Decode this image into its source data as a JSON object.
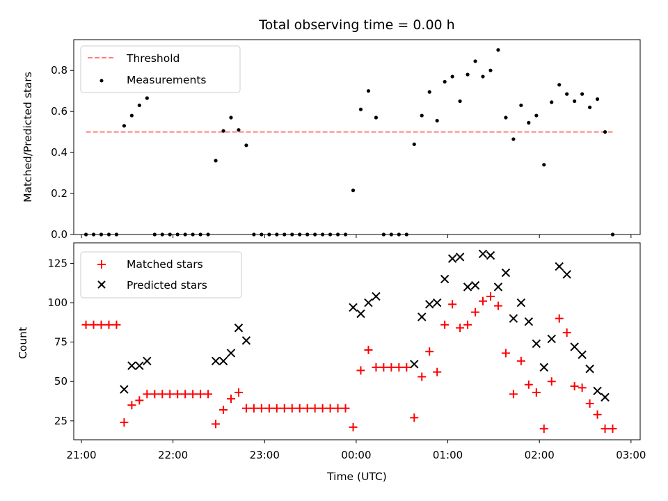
{
  "chart_data": [
    {
      "type": "scatter",
      "title": "Total observing time = 0.00 h",
      "xlabel": "",
      "ylabel": "Matched/Predicted stars",
      "xlim": [
        "20:55",
        "03:06"
      ],
      "ylim": [
        0,
        0.95
      ],
      "y_ticks": [
        0,
        0.2,
        0.4,
        0.6,
        0.8
      ],
      "y_tick_labels": [
        "0.0",
        "0.2",
        "0.4",
        "0.6",
        "0.8"
      ],
      "grid": false,
      "legend": "top-left",
      "legend_entries": [
        "Threshold",
        "Measurements"
      ],
      "threshold": {
        "name": "Threshold",
        "y": 0.5,
        "x_range": [
          "21:03",
          "02:48"
        ],
        "color": "#ff7f7f",
        "style": "dashed"
      },
      "series": [
        {
          "name": "Measurements",
          "color": "#000000",
          "marker": "dot",
          "points": [
            [
              "21:03",
              0
            ],
            [
              "21:08",
              0
            ],
            [
              "21:13",
              0
            ],
            [
              "21:18",
              0
            ],
            [
              "21:23",
              0
            ],
            [
              "21:28",
              0.53
            ],
            [
              "21:33",
              0.58
            ],
            [
              "21:38",
              0.63
            ],
            [
              "21:43",
              0.665
            ],
            [
              "21:48",
              0
            ],
            [
              "21:53",
              0
            ],
            [
              "21:58",
              0
            ],
            [
              "22:03",
              0
            ],
            [
              "22:08",
              0
            ],
            [
              "22:13",
              0
            ],
            [
              "22:18",
              0
            ],
            [
              "22:23",
              0
            ],
            [
              "22:28",
              0.36
            ],
            [
              "22:33",
              0.505
            ],
            [
              "22:38",
              0.57
            ],
            [
              "22:43",
              0.51
            ],
            [
              "22:48",
              0.435
            ],
            [
              "22:53",
              0
            ],
            [
              "22:58",
              0
            ],
            [
              "23:03",
              0
            ],
            [
              "23:08",
              0
            ],
            [
              "23:13",
              0
            ],
            [
              "23:18",
              0
            ],
            [
              "23:23",
              0
            ],
            [
              "23:28",
              0
            ],
            [
              "23:33",
              0
            ],
            [
              "23:38",
              0
            ],
            [
              "23:43",
              0
            ],
            [
              "23:48",
              0
            ],
            [
              "23:53",
              0
            ],
            [
              "23:58",
              0.215
            ],
            [
              "00:03",
              0.61
            ],
            [
              "00:08",
              0.7
            ],
            [
              "00:13",
              0.57
            ],
            [
              "00:18",
              0
            ],
            [
              "00:23",
              0
            ],
            [
              "00:28",
              0
            ],
            [
              "00:33",
              0
            ],
            [
              "00:38",
              0.44
            ],
            [
              "00:43",
              0.58
            ],
            [
              "00:48",
              0.695
            ],
            [
              "00:53",
              0.555
            ],
            [
              "00:58",
              0.745
            ],
            [
              "01:03",
              0.77
            ],
            [
              "01:08",
              0.65
            ],
            [
              "01:13",
              0.78
            ],
            [
              "01:18",
              0.845
            ],
            [
              "01:23",
              0.77
            ],
            [
              "01:28",
              0.8
            ],
            [
              "01:33",
              0.9
            ],
            [
              "01:38",
              0.57
            ],
            [
              "01:43",
              0.465
            ],
            [
              "01:48",
              0.63
            ],
            [
              "01:53",
              0.545
            ],
            [
              "01:58",
              0.58
            ],
            [
              "02:03",
              0.34
            ],
            [
              "02:08",
              0.645
            ],
            [
              "02:13",
              0.73
            ],
            [
              "02:18",
              0.685
            ],
            [
              "02:23",
              0.65
            ],
            [
              "02:28",
              0.685
            ],
            [
              "02:33",
              0.62
            ],
            [
              "02:38",
              0.66
            ],
            [
              "02:43",
              0.5
            ],
            [
              "02:48",
              0
            ]
          ]
        }
      ]
    },
    {
      "type": "scatter",
      "title": "",
      "xlabel": "Time (UTC)",
      "ylabel": "Count",
      "xlim": [
        "20:55",
        "03:06"
      ],
      "ylim": [
        13,
        138
      ],
      "x_ticks": [
        "21:00",
        "22:00",
        "23:00",
        "00:00",
        "01:00",
        "02:00",
        "03:00"
      ],
      "y_ticks": [
        25,
        50,
        75,
        100,
        125
      ],
      "y_tick_labels": [
        "25",
        "50",
        "75",
        "100",
        "125"
      ],
      "grid": false,
      "legend": "top-left",
      "legend_entries": [
        "Matched stars",
        "Predicted stars"
      ],
      "series": [
        {
          "name": "Matched stars",
          "color": "#ff0000",
          "marker": "plus",
          "points": [
            [
              "21:03",
              86
            ],
            [
              "21:08",
              86
            ],
            [
              "21:13",
              86
            ],
            [
              "21:18",
              86
            ],
            [
              "21:23",
              86
            ],
            [
              "21:28",
              24
            ],
            [
              "21:33",
              35
            ],
            [
              "21:38",
              38
            ],
            [
              "21:43",
              42
            ],
            [
              "21:48",
              42
            ],
            [
              "21:53",
              42
            ],
            [
              "21:58",
              42
            ],
            [
              "22:03",
              42
            ],
            [
              "22:08",
              42
            ],
            [
              "22:13",
              42
            ],
            [
              "22:18",
              42
            ],
            [
              "22:23",
              42
            ],
            [
              "22:28",
              23
            ],
            [
              "22:33",
              32
            ],
            [
              "22:38",
              39
            ],
            [
              "22:43",
              43
            ],
            [
              "22:48",
              33
            ],
            [
              "22:53",
              33
            ],
            [
              "22:58",
              33
            ],
            [
              "23:03",
              33
            ],
            [
              "23:08",
              33
            ],
            [
              "23:13",
              33
            ],
            [
              "23:18",
              33
            ],
            [
              "23:23",
              33
            ],
            [
              "23:28",
              33
            ],
            [
              "23:33",
              33
            ],
            [
              "23:38",
              33
            ],
            [
              "23:43",
              33
            ],
            [
              "23:48",
              33
            ],
            [
              "23:53",
              33
            ],
            [
              "23:58",
              21
            ],
            [
              "00:03",
              57
            ],
            [
              "00:08",
              70
            ],
            [
              "00:13",
              59
            ],
            [
              "00:18",
              59
            ],
            [
              "00:23",
              59
            ],
            [
              "00:28",
              59
            ],
            [
              "00:33",
              59
            ],
            [
              "00:38",
              27
            ],
            [
              "00:43",
              53
            ],
            [
              "00:48",
              69
            ],
            [
              "00:53",
              56
            ],
            [
              "00:58",
              86
            ],
            [
              "01:03",
              99
            ],
            [
              "01:08",
              84
            ],
            [
              "01:13",
              86
            ],
            [
              "01:18",
              94
            ],
            [
              "01:23",
              101
            ],
            [
              "01:28",
              104
            ],
            [
              "01:33",
              98
            ],
            [
              "01:38",
              68
            ],
            [
              "01:43",
              42
            ],
            [
              "01:48",
              63
            ],
            [
              "01:53",
              48
            ],
            [
              "01:58",
              43
            ],
            [
              "02:03",
              20
            ],
            [
              "02:08",
              50
            ],
            [
              "02:13",
              90
            ],
            [
              "02:18",
              81
            ],
            [
              "02:23",
              47
            ],
            [
              "02:28",
              46
            ],
            [
              "02:33",
              36
            ],
            [
              "02:38",
              29
            ],
            [
              "02:43",
              20
            ],
            [
              "02:48",
              20
            ]
          ]
        },
        {
          "name": "Predicted stars",
          "color": "#000000",
          "marker": "x",
          "points": [
            [
              "21:28",
              45
            ],
            [
              "21:33",
              60
            ],
            [
              "21:38",
              60
            ],
            [
              "21:43",
              63
            ],
            [
              "22:28",
              63
            ],
            [
              "22:33",
              63
            ],
            [
              "22:38",
              68
            ],
            [
              "22:43",
              84
            ],
            [
              "22:48",
              76
            ],
            [
              "23:58",
              97
            ],
            [
              "00:03",
              93
            ],
            [
              "00:08",
              100
            ],
            [
              "00:13",
              104
            ],
            [
              "00:38",
              61
            ],
            [
              "00:43",
              91
            ],
            [
              "00:48",
              99
            ],
            [
              "00:53",
              100
            ],
            [
              "00:58",
              115
            ],
            [
              "01:03",
              128
            ],
            [
              "01:08",
              129
            ],
            [
              "01:13",
              110
            ],
            [
              "01:18",
              111
            ],
            [
              "01:23",
              131
            ],
            [
              "01:28",
              130
            ],
            [
              "01:33",
              110
            ],
            [
              "01:38",
              119
            ],
            [
              "01:43",
              90
            ],
            [
              "01:48",
              100
            ],
            [
              "01:53",
              88
            ],
            [
              "01:58",
              74
            ],
            [
              "02:03",
              59
            ],
            [
              "02:08",
              77
            ],
            [
              "02:13",
              123
            ],
            [
              "02:18",
              118
            ],
            [
              "02:23",
              72
            ],
            [
              "02:28",
              67
            ],
            [
              "02:33",
              58
            ],
            [
              "02:38",
              44
            ],
            [
              "02:43",
              40
            ]
          ]
        }
      ]
    }
  ]
}
